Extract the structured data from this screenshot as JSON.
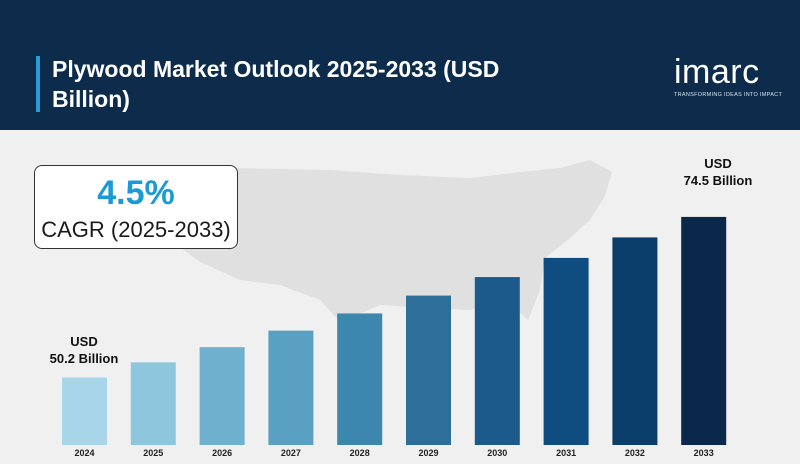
{
  "header": {
    "title": "Plywood Market Outlook 2025-2033 (USD Billion)",
    "logo_word": "imarc",
    "logo_tagline": "TRANSFORMING IDEAS INTO IMPACT"
  },
  "cagr": {
    "value": "4.5%",
    "label": "CAGR (2025-2033)"
  },
  "callouts": {
    "first_line1": "USD",
    "first_line2": "50.2 Billion",
    "last_line1": "USD",
    "last_line2": "74.5 Billion"
  },
  "colors": {
    "header_bg": "#0d2c4c",
    "accent": "#2a9bd9",
    "bars": [
      "#a8d5e8",
      "#8ec6de",
      "#6fb0cf",
      "#5aa0c2",
      "#3b87ad",
      "#2d6f98",
      "#1c5a8c",
      "#0f4c80",
      "#0b3d6a",
      "#09284a"
    ]
  },
  "chart_data": {
    "type": "bar",
    "categories": [
      "2024",
      "2025",
      "2026",
      "2027",
      "2028",
      "2029",
      "2030",
      "2031",
      "2032",
      "2033"
    ],
    "values": [
      50.2,
      52.5,
      54.8,
      57.3,
      59.9,
      62.6,
      65.4,
      68.3,
      71.4,
      74.5
    ],
    "title": "Plywood Market Outlook 2025-2033 (USD Billion)",
    "xlabel": "",
    "ylabel": "",
    "ylim": [
      40,
      76
    ],
    "grid": false,
    "legend": "none"
  }
}
